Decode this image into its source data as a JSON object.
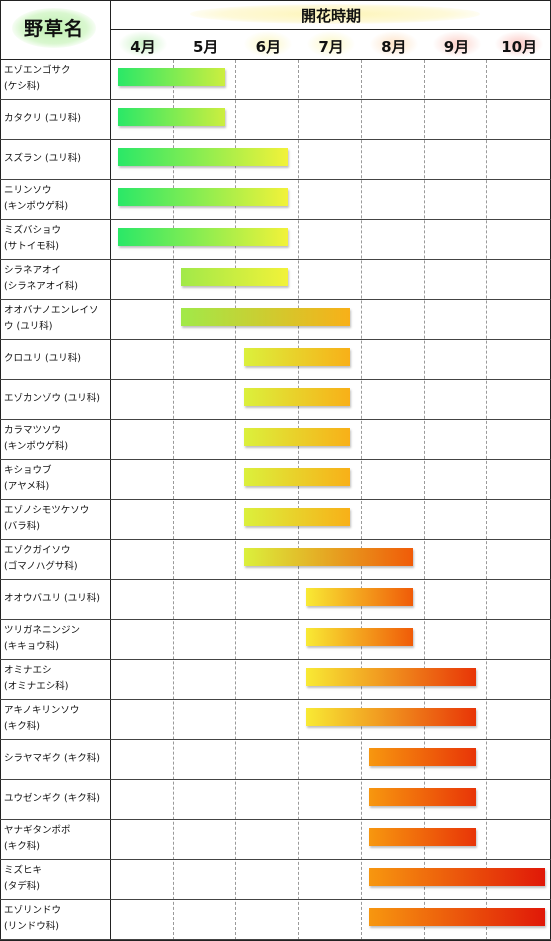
{
  "chart_data": {
    "type": "gantt",
    "title": "開花時期",
    "row_header": "野草名",
    "months": [
      "4月",
      "5月",
      "6月",
      "7月",
      "8月",
      "9月",
      "10月"
    ],
    "month_numbers": [
      4,
      5,
      6,
      7,
      8,
      9,
      10
    ],
    "colors": {
      "apr": "#1ee86a",
      "may": "#9be84a",
      "jun": "#d8f03c",
      "jul": "#f8f238",
      "aug": "#f8a010",
      "sep": "#ee4a06",
      "oct": "#e01808"
    },
    "series": [
      {
        "name": "エゾエンゴサク",
        "family": "(ケシ科)",
        "start": 4.1,
        "end": 5.8
      },
      {
        "name": "カタクリ (ユリ科)",
        "family": "",
        "start": 4.1,
        "end": 5.8
      },
      {
        "name": "スズラン (ユリ科)",
        "family": "",
        "start": 4.1,
        "end": 6.8
      },
      {
        "name": "ニリンソウ",
        "family": "(キンポウゲ科)",
        "start": 4.1,
        "end": 6.8
      },
      {
        "name": "ミズバショウ",
        "family": "(サトイモ科)",
        "start": 4.1,
        "end": 6.8
      },
      {
        "name": "シラネアオイ",
        "family": "(シラネアオイ科)",
        "start": 5.1,
        "end": 6.8
      },
      {
        "name": "オオバナノエンレイソ",
        "family": "ウ (ユリ科)",
        "start": 5.1,
        "end": 7.8
      },
      {
        "name": "クロユリ (ユリ科)",
        "family": "",
        "start": 6.1,
        "end": 7.8
      },
      {
        "name": "エゾカンゾウ (ユリ科)",
        "family": "",
        "start": 6.1,
        "end": 7.8
      },
      {
        "name": "カラマツソウ",
        "family": "(キンポウゲ科)",
        "start": 6.1,
        "end": 7.8
      },
      {
        "name": "キショウブ",
        "family": "(アヤメ科)",
        "start": 6.1,
        "end": 7.8
      },
      {
        "name": "エゾノシモツケソウ",
        "family": "(バラ科)",
        "start": 6.1,
        "end": 7.8
      },
      {
        "name": "エゾクガイソウ",
        "family": "(ゴマノハグサ科)",
        "start": 6.1,
        "end": 8.8
      },
      {
        "name": "オオウバユリ (ユリ科)",
        "family": "",
        "start": 7.1,
        "end": 8.8
      },
      {
        "name": "ツリガネニンジン",
        "family": "(キキョウ科)",
        "start": 7.1,
        "end": 8.8
      },
      {
        "name": "オミナエシ",
        "family": "(オミナエシ科)",
        "start": 7.1,
        "end": 9.8
      },
      {
        "name": "アキノキリンソウ",
        "family": "(キク科)",
        "start": 7.1,
        "end": 9.8
      },
      {
        "name": "シラヤマギク (キク科)",
        "family": "",
        "start": 8.1,
        "end": 9.8
      },
      {
        "name": "ユウゼンギク (キク科)",
        "family": "",
        "start": 8.1,
        "end": 9.8
      },
      {
        "name": "ヤナギタンポポ",
        "family": "(キク科)",
        "start": 8.1,
        "end": 9.8
      },
      {
        "name": "ミズヒキ",
        "family": "(タデ科)",
        "start": 8.1,
        "end": 10.9
      },
      {
        "name": "エゾリンドウ",
        "family": "(リンドウ科)",
        "start": 8.1,
        "end": 10.9
      }
    ]
  }
}
